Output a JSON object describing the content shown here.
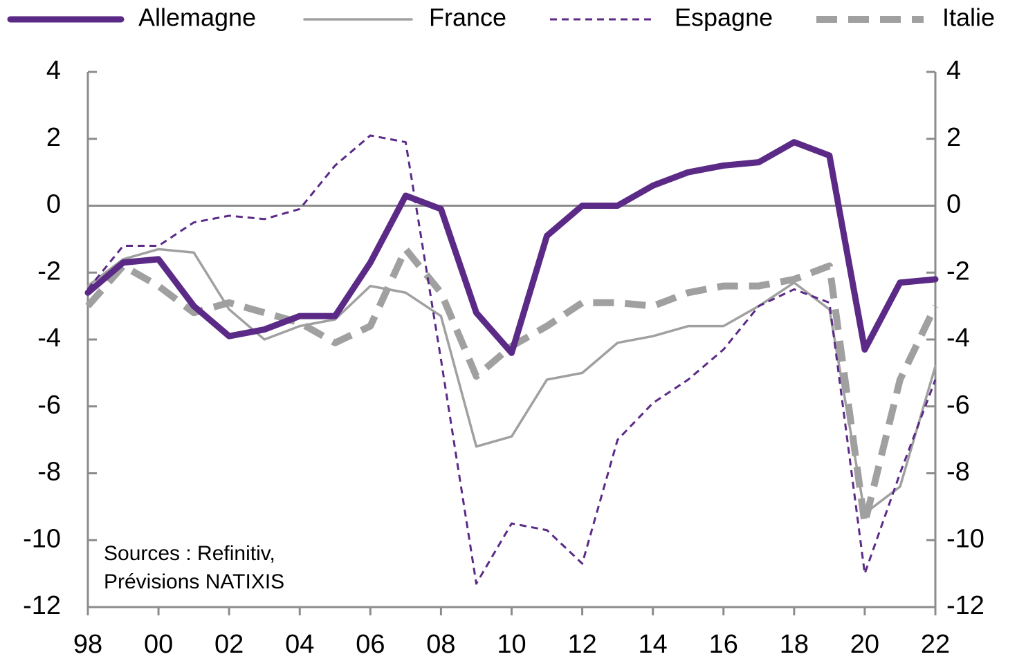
{
  "chart_data": {
    "type": "line",
    "categories": [
      "98",
      null,
      "00",
      null,
      "02",
      null,
      "04",
      null,
      "06",
      null,
      "08",
      null,
      "10",
      null,
      "12",
      null,
      "14",
      null,
      "16",
      null,
      "18",
      null,
      "20",
      null,
      "22"
    ],
    "series": [
      {
        "name": "Allemagne",
        "color": "#5b2a86",
        "bold": true,
        "dash": false,
        "values": [
          -2.6,
          -1.7,
          -1.6,
          -3.0,
          -3.9,
          -3.7,
          -3.3,
          -3.3,
          -1.7,
          0.3,
          -0.1,
          -3.2,
          -4.4,
          -0.9,
          0.0,
          0.0,
          0.6,
          1.0,
          1.2,
          1.3,
          1.9,
          1.5,
          -4.3,
          -2.3,
          -2.2
        ]
      },
      {
        "name": "France",
        "color": "#a0a0a0",
        "bold": false,
        "dash": false,
        "values": [
          -2.4,
          -1.6,
          -1.3,
          -1.4,
          -3.1,
          -4.0,
          -3.6,
          -3.4,
          -2.4,
          -2.6,
          -3.3,
          -7.2,
          -6.9,
          -5.2,
          -5.0,
          -4.1,
          -3.9,
          -3.6,
          -3.6,
          -3.0,
          -2.3,
          -3.1,
          -9.2,
          -8.4,
          -4.8
        ]
      },
      {
        "name": "Espagne",
        "color": "#5b2a86",
        "bold": false,
        "dash": true,
        "values": [
          -2.5,
          -1.2,
          -1.2,
          -0.5,
          -0.3,
          -0.4,
          -0.1,
          1.2,
          2.1,
          1.9,
          -4.6,
          -11.3,
          -9.5,
          -9.7,
          -10.7,
          -7.0,
          -5.9,
          -5.2,
          -4.3,
          -3.0,
          -2.5,
          -2.9,
          -11.0,
          -8.0,
          -5.2
        ]
      },
      {
        "name": "Italie",
        "color": "#a0a0a0",
        "bold": true,
        "dash": true,
        "values": [
          -3.0,
          -1.8,
          -2.4,
          -3.2,
          -2.9,
          -3.2,
          -3.5,
          -4.1,
          -3.6,
          -1.3,
          -2.6,
          -5.1,
          -4.2,
          -3.6,
          -2.9,
          -2.9,
          -3.0,
          -2.6,
          -2.4,
          -2.4,
          -2.2,
          -1.8,
          -9.5,
          -5.2,
          -3.0
        ]
      }
    ],
    "ylim": [
      -12,
      4
    ],
    "yticks": [
      -12,
      -10,
      -8,
      -6,
      -4,
      -2,
      0,
      2,
      4
    ],
    "y2lim": [
      -12,
      4
    ],
    "y2ticks": [
      -12,
      -10,
      -8,
      -6,
      -4,
      -2,
      0,
      2,
      4
    ],
    "zero_line": true,
    "legend": "top",
    "annotation": [
      "Sources : Refinitiv,",
      "Prévisions NATIXIS"
    ]
  }
}
